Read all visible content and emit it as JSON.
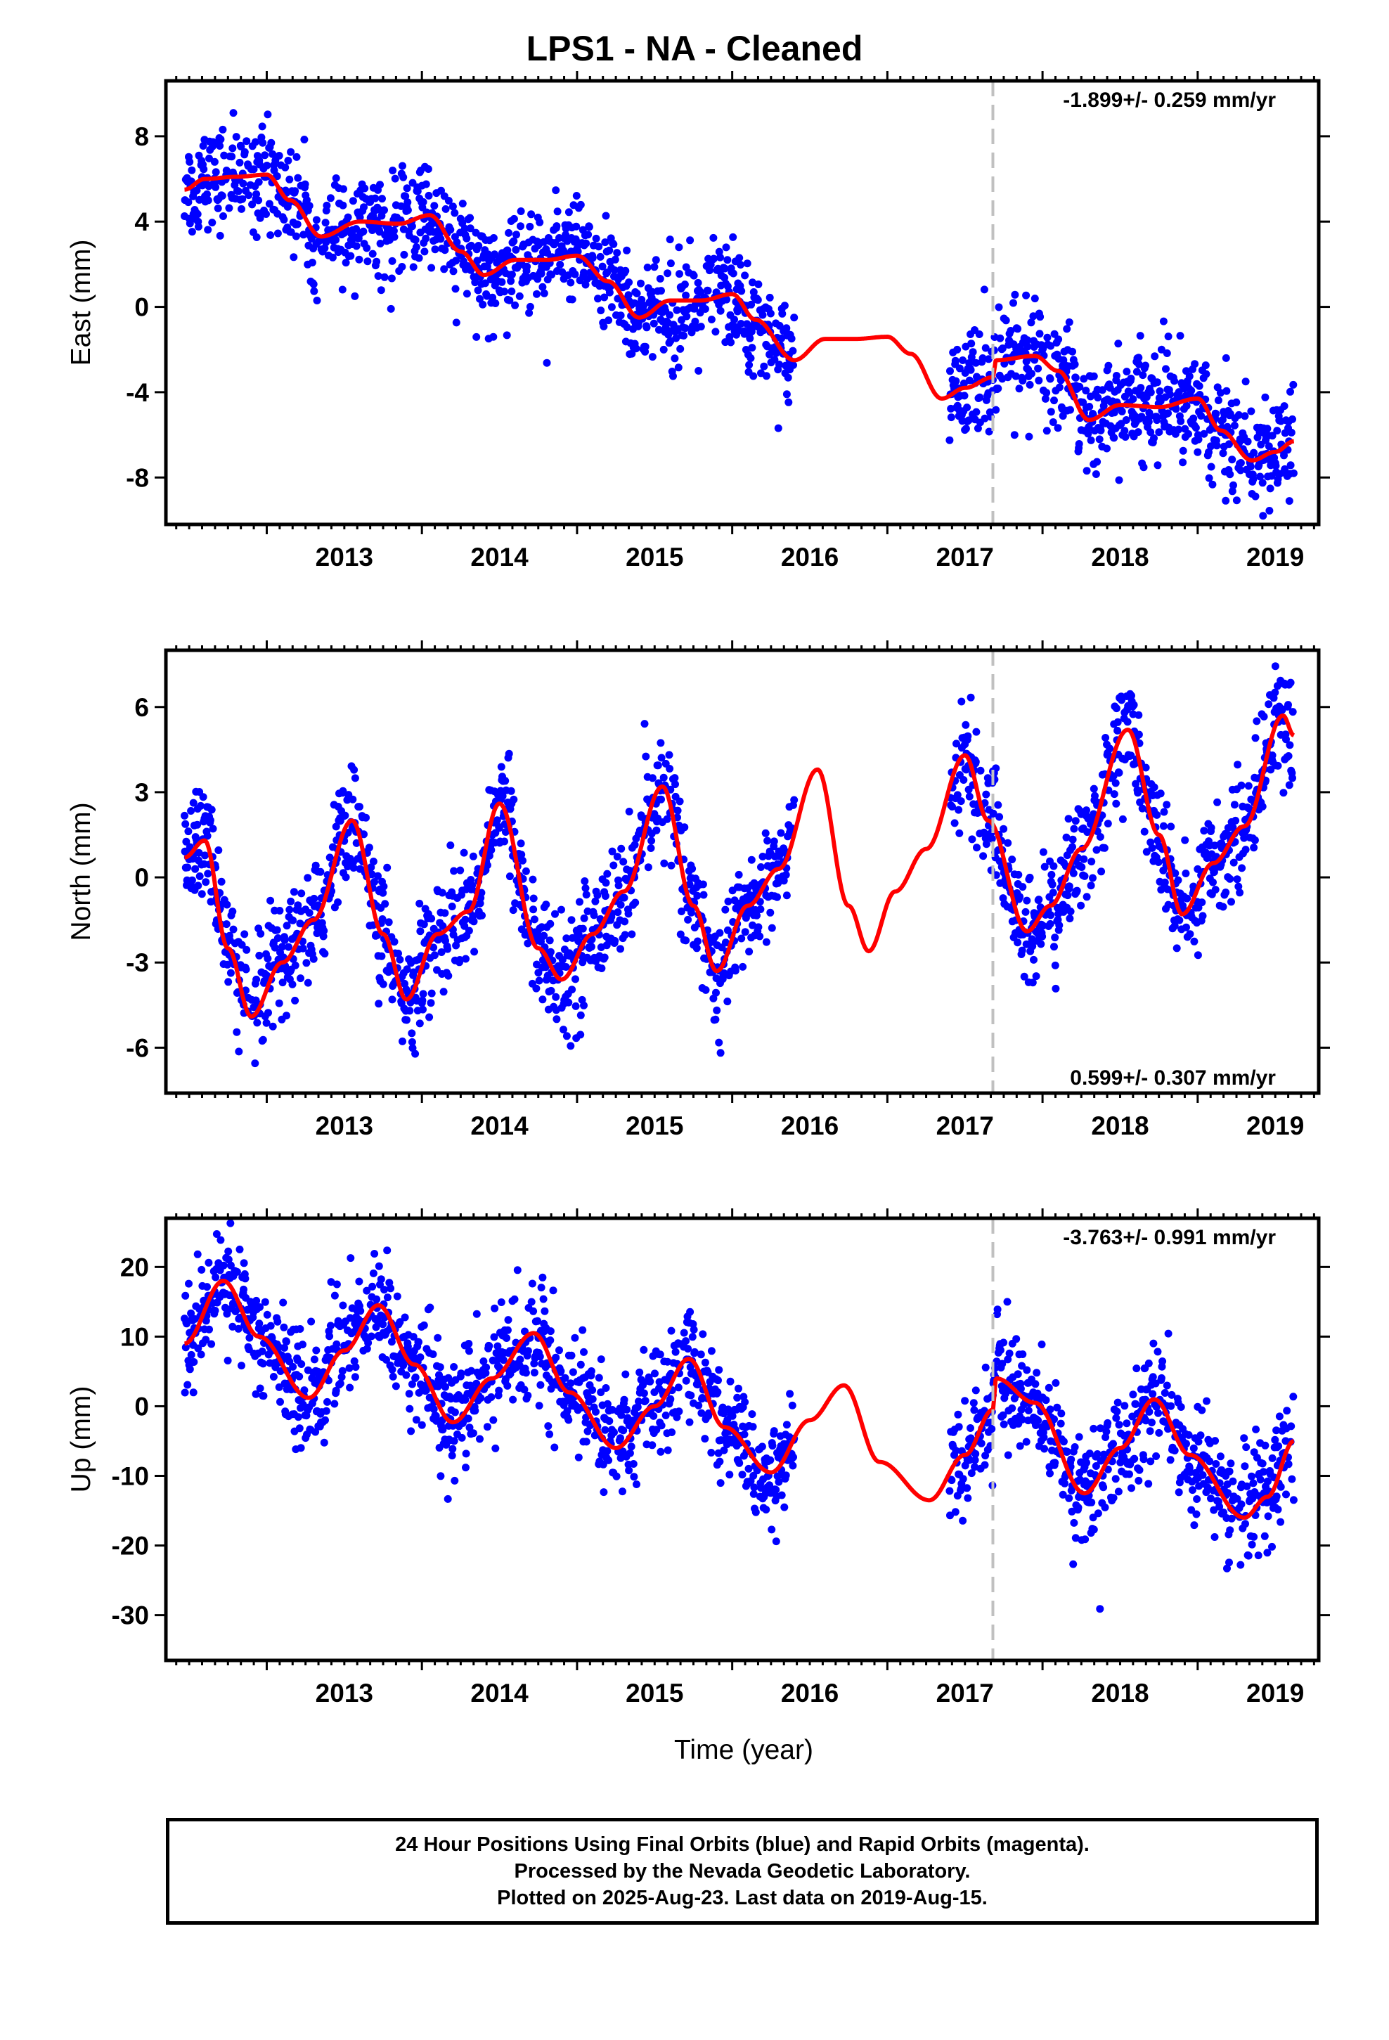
{
  "title": "LPS1  - NA - Cleaned",
  "xlabel": "Time (year)",
  "footer": [
    "24 Hour Positions Using Final Orbits (blue) and Rapid Orbits (magenta).",
    "Processed by the Nevada Geodetic Laboratory.",
    "Plotted on 2025-Aug-23. Last data on 2019-Aug-15."
  ],
  "colors": {
    "points": "#0000ff",
    "model": "#ff0000",
    "event_line": "#c0c0c0",
    "frame": "#000000"
  },
  "chart_data": [
    {
      "type": "scatter",
      "name": "east",
      "ylabel": "East (mm)",
      "rate_label": "-1.899+/- 0.259 mm/yr",
      "rate_position": "top-right",
      "xlim": [
        2012.35,
        2019.78
      ],
      "ylim": [
        -10.2,
        10.6
      ],
      "xticks": [
        2013,
        2014,
        2015,
        2016,
        2017,
        2018,
        2019
      ],
      "yticks": [
        8,
        4,
        0,
        -4,
        -8
      ],
      "event_line_x": 2017.68,
      "data_range": [
        2012.47,
        2019.62
      ],
      "gap": [
        2016.4,
        2017.4
      ],
      "model_knots": [
        [
          2012.47,
          5.5
        ],
        [
          2012.6,
          6.0
        ],
        [
          2012.8,
          6.1
        ],
        [
          2013.0,
          6.2
        ],
        [
          2013.15,
          5.0
        ],
        [
          2013.35,
          3.3
        ],
        [
          2013.6,
          4.0
        ],
        [
          2013.85,
          3.9
        ],
        [
          2014.05,
          4.3
        ],
        [
          2014.25,
          2.6
        ],
        [
          2014.4,
          1.5
        ],
        [
          2014.6,
          2.2
        ],
        [
          2014.8,
          2.2
        ],
        [
          2015.0,
          2.4
        ],
        [
          2015.2,
          1.2
        ],
        [
          2015.4,
          -0.5
        ],
        [
          2015.6,
          0.3
        ],
        [
          2015.8,
          0.3
        ],
        [
          2016.0,
          0.6
        ],
        [
          2016.15,
          -0.6
        ],
        [
          2016.4,
          -2.5
        ],
        [
          2016.6,
          -1.5
        ],
        [
          2016.8,
          -1.5
        ],
        [
          2017.0,
          -1.4
        ],
        [
          2017.15,
          -2.2
        ],
        [
          2017.35,
          -4.3
        ],
        [
          2017.5,
          -3.8
        ],
        [
          2017.68,
          -3.3
        ],
        [
          2017.7,
          -2.5
        ],
        [
          2017.95,
          -2.3
        ],
        [
          2018.1,
          -3.0
        ],
        [
          2018.3,
          -5.3
        ],
        [
          2018.5,
          -4.6
        ],
        [
          2018.75,
          -4.7
        ],
        [
          2019.0,
          -4.3
        ],
        [
          2019.15,
          -5.8
        ],
        [
          2019.35,
          -7.2
        ],
        [
          2019.5,
          -6.8
        ],
        [
          2019.62,
          -6.3
        ]
      ],
      "scatter_sd": 1.2
    },
    {
      "type": "scatter",
      "name": "north",
      "ylabel": "North (mm)",
      "rate_label": "0.599+/- 0.307 mm/yr",
      "rate_position": "bottom-right",
      "xlim": [
        2012.35,
        2019.78
      ],
      "ylim": [
        -7.6,
        8.0
      ],
      "xticks": [
        2013,
        2014,
        2015,
        2016,
        2017,
        2018,
        2019
      ],
      "yticks": [
        6,
        3,
        0,
        -3,
        -6
      ],
      "event_line_x": 2017.68,
      "data_range": [
        2012.47,
        2019.62
      ],
      "gap": [
        2016.4,
        2017.4
      ],
      "model_knots": [
        [
          2012.47,
          0.7
        ],
        [
          2012.6,
          1.3
        ],
        [
          2012.75,
          -2.5
        ],
        [
          2012.9,
          -4.9
        ],
        [
          2013.1,
          -3.0
        ],
        [
          2013.3,
          -1.5
        ],
        [
          2013.55,
          2.0
        ],
        [
          2013.75,
          -2.0
        ],
        [
          2013.9,
          -4.3
        ],
        [
          2014.1,
          -2.0
        ],
        [
          2014.3,
          -1.2
        ],
        [
          2014.5,
          2.6
        ],
        [
          2014.75,
          -2.5
        ],
        [
          2014.9,
          -3.6
        ],
        [
          2015.1,
          -2.0
        ],
        [
          2015.3,
          -0.5
        ],
        [
          2015.55,
          3.2
        ],
        [
          2015.75,
          -1.0
        ],
        [
          2015.9,
          -3.3
        ],
        [
          2016.1,
          -1.0
        ],
        [
          2016.3,
          0.3
        ],
        [
          2016.55,
          3.8
        ],
        [
          2016.75,
          -1.0
        ],
        [
          2016.88,
          -2.6
        ],
        [
          2017.05,
          -0.5
        ],
        [
          2017.25,
          1.0
        ],
        [
          2017.5,
          4.3
        ],
        [
          2017.65,
          2.0
        ],
        [
          2017.9,
          -1.9
        ],
        [
          2018.05,
          -1.0
        ],
        [
          2018.25,
          1.0
        ],
        [
          2018.55,
          5.2
        ],
        [
          2018.75,
          1.5
        ],
        [
          2018.9,
          -1.3
        ],
        [
          2019.1,
          0.5
        ],
        [
          2019.3,
          1.8
        ],
        [
          2019.55,
          5.7
        ],
        [
          2019.62,
          5.0
        ]
      ],
      "scatter_sd": 1.0
    },
    {
      "type": "scatter",
      "name": "up",
      "ylabel": "Up (mm)",
      "rate_label": "-3.763+/- 0.991 mm/yr",
      "rate_position": "top-right",
      "xlim": [
        2012.35,
        2019.78
      ],
      "ylim": [
        -36.5,
        27.0
      ],
      "xticks": [
        2013,
        2014,
        2015,
        2016,
        2017,
        2018,
        2019
      ],
      "yticks": [
        20,
        10,
        0,
        -10,
        -20,
        -30
      ],
      "event_line_x": 2017.68,
      "data_range": [
        2012.47,
        2019.62
      ],
      "gap": [
        2016.4,
        2017.4
      ],
      "model_knots": [
        [
          2012.47,
          9.0
        ],
        [
          2012.72,
          18.0
        ],
        [
          2012.95,
          10.0
        ],
        [
          2013.27,
          1.2
        ],
        [
          2013.5,
          8.0
        ],
        [
          2013.72,
          14.5
        ],
        [
          2013.95,
          6.0
        ],
        [
          2014.2,
          -2.3
        ],
        [
          2014.45,
          4.0
        ],
        [
          2014.72,
          10.5
        ],
        [
          2014.95,
          2.0
        ],
        [
          2015.25,
          -6.0
        ],
        [
          2015.5,
          0.0
        ],
        [
          2015.72,
          6.8
        ],
        [
          2015.95,
          -3.0
        ],
        [
          2016.25,
          -9.5
        ],
        [
          2016.5,
          -2.0
        ],
        [
          2016.72,
          3.0
        ],
        [
          2016.95,
          -8.0
        ],
        [
          2017.27,
          -13.5
        ],
        [
          2017.5,
          -7.0
        ],
        [
          2017.68,
          -0.5
        ],
        [
          2017.7,
          4.0
        ],
        [
          2017.95,
          0.5
        ],
        [
          2018.27,
          -12.5
        ],
        [
          2018.5,
          -6.0
        ],
        [
          2018.72,
          1.0
        ],
        [
          2018.95,
          -7.0
        ],
        [
          2019.3,
          -16.0
        ],
        [
          2019.45,
          -13.0
        ],
        [
          2019.62,
          -5.0
        ]
      ],
      "scatter_sd": 4.0
    }
  ]
}
